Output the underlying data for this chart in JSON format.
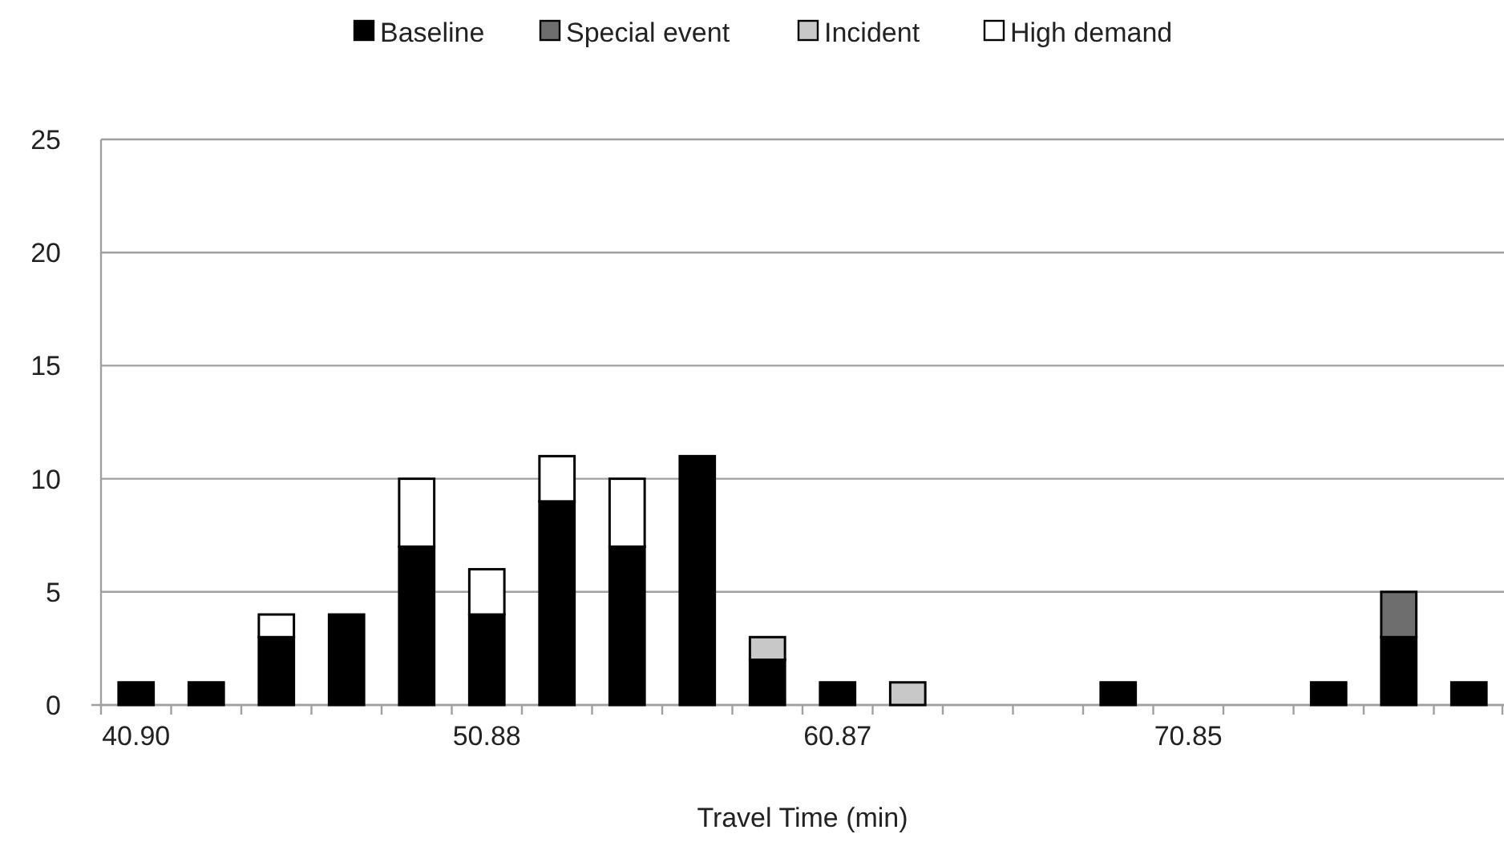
{
  "chart_data": {
    "type": "bar",
    "stacked": true,
    "xlabel": "Travel Time (min)",
    "categories": [
      "40.90",
      null,
      null,
      null,
      null,
      "50.88",
      null,
      null,
      null,
      null,
      "60.87",
      null,
      null,
      null,
      null,
      "70.85",
      null,
      null,
      null,
      null
    ],
    "series": [
      {
        "name": "Baseline",
        "color": "#000000",
        "values": [
          1,
          1,
          3,
          4,
          7,
          4,
          9,
          7,
          11,
          2,
          1,
          0,
          0,
          0,
          1,
          0,
          0,
          1,
          3,
          1
        ]
      },
      {
        "name": "Special event",
        "color": "#6e6e6e",
        "values": [
          0,
          0,
          0,
          0,
          0,
          0,
          0,
          0,
          0,
          0,
          0,
          0,
          0,
          0,
          0,
          0,
          0,
          0,
          2,
          0
        ]
      },
      {
        "name": "Incident",
        "color": "#c8c8c8",
        "values": [
          0,
          0,
          0,
          0,
          0,
          0,
          0,
          0,
          0,
          1,
          0,
          1,
          0,
          0,
          0,
          0,
          0,
          0,
          0,
          0
        ]
      },
      {
        "name": "High demand",
        "color": "#ffffff",
        "values": [
          0,
          0,
          1,
          0,
          3,
          2,
          2,
          3,
          0,
          0,
          0,
          0,
          0,
          0,
          0,
          0,
          0,
          0,
          0,
          0
        ]
      }
    ],
    "ylim": [
      0,
      25
    ],
    "yticks": [
      0,
      5,
      10,
      15,
      20,
      25
    ],
    "grid": "y",
    "legend": "top"
  }
}
